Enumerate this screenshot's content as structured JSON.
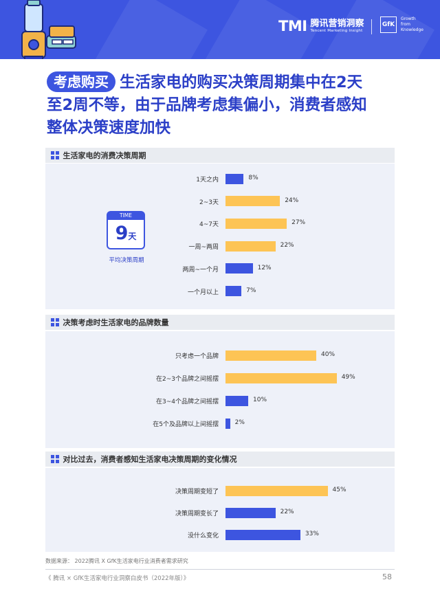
{
  "header": {
    "tmi_logo": "TMI",
    "tmi_cn": "腾讯营销洞察",
    "tmi_en": "Tencent Marketing Insight",
    "gfk_logo": "GfK",
    "gfk_tagline": [
      "Growth",
      "from",
      "Knowledge"
    ]
  },
  "title": {
    "tag": "考虑购买",
    "line1": "生活家电的购买决策周期集中在2天",
    "line2": "至2周不等，由于品牌考虑集偏小，消费者感知",
    "line3": "整体决策速度加快"
  },
  "colors": {
    "accent": "#3d55e0",
    "bar_blue": "#3d55e0",
    "bar_yellow": "#fdc455"
  },
  "clock": {
    "top_label": "TIME",
    "value": "9",
    "unit": "天",
    "caption": "平均决策周期"
  },
  "chart_data": [
    {
      "type": "bar",
      "orientation": "horizontal",
      "title": "生活家电的消费决策周期",
      "categories": [
        "1天之内",
        "2~3天",
        "4~7天",
        "一周~两周",
        "两周~一个月",
        "一个月以上"
      ],
      "values": [
        8,
        24,
        27,
        22,
        12,
        7
      ],
      "value_labels": [
        "8%",
        "24%",
        "27%",
        "22%",
        "12%",
        "7%"
      ],
      "colors": [
        "blue",
        "yellow",
        "yellow",
        "yellow",
        "blue",
        "blue"
      ],
      "xlim": [
        0,
        50
      ]
    },
    {
      "type": "bar",
      "orientation": "horizontal",
      "title": "决策考虑时生活家电的品牌数量",
      "categories": [
        "只考虑一个品牌",
        "在2~3个品牌之间摇摆",
        "在3~4个品牌之间摇摆",
        "在5个及品牌以上间摇摆"
      ],
      "values": [
        40,
        49,
        10,
        2
      ],
      "value_labels": [
        "40%",
        "49%",
        "10%",
        "2%"
      ],
      "colors": [
        "yellow",
        "yellow",
        "blue",
        "blue"
      ],
      "xlim": [
        0,
        50
      ]
    },
    {
      "type": "bar",
      "orientation": "horizontal",
      "title": "对比过去，消费者感知生活家电决策周期的变化情况",
      "categories": [
        "决策周期变短了",
        "决策周期变长了",
        "没什么变化"
      ],
      "values": [
        45,
        22,
        33
      ],
      "value_labels": [
        "45%",
        "22%",
        "33%"
      ],
      "colors": [
        "yellow",
        "blue",
        "blue"
      ],
      "xlim": [
        0,
        50
      ]
    }
  ],
  "source": "数据来源： 2022腾讯 X GfK生活家电行业消费者需求研究",
  "footer": "《 腾讯 × GfK生活家电行业洞察白皮书（2022年版）》",
  "page_number": "58"
}
